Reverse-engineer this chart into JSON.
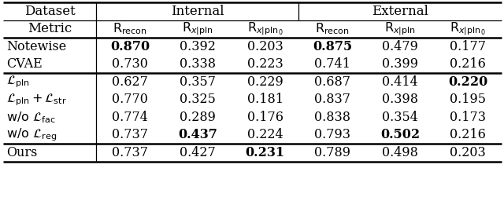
{
  "rows": [
    [
      "Notewise",
      "\\mathbf{0.870}",
      "0.392",
      "0.203",
      "\\mathbf{0.875}",
      "0.479",
      "0.177"
    ],
    [
      "CVAE",
      "0.730",
      "0.338",
      "0.223",
      "0.741",
      "0.399",
      "0.216"
    ],
    [
      "L_pln",
      "0.627",
      "0.357",
      "0.229",
      "0.687",
      "0.414",
      "\\mathbf{0.220}"
    ],
    [
      "L_pln_str",
      "0.770",
      "0.325",
      "0.181",
      "0.837",
      "0.398",
      "0.195"
    ],
    [
      "wlo_fac",
      "0.774",
      "0.289",
      "0.176",
      "0.838",
      "0.354",
      "0.173"
    ],
    [
      "wlo_reg",
      "0.737",
      "\\mathbf{0.437}",
      "0.224",
      "0.793",
      "\\mathbf{0.502}",
      "0.216"
    ],
    [
      "Ours",
      "0.737",
      "0.427",
      "\\mathbf{0.231}",
      "0.789",
      "0.498",
      "0.203"
    ]
  ],
  "background_color": "#ffffff",
  "font_size": 11.5,
  "header_font_size": 12.0
}
